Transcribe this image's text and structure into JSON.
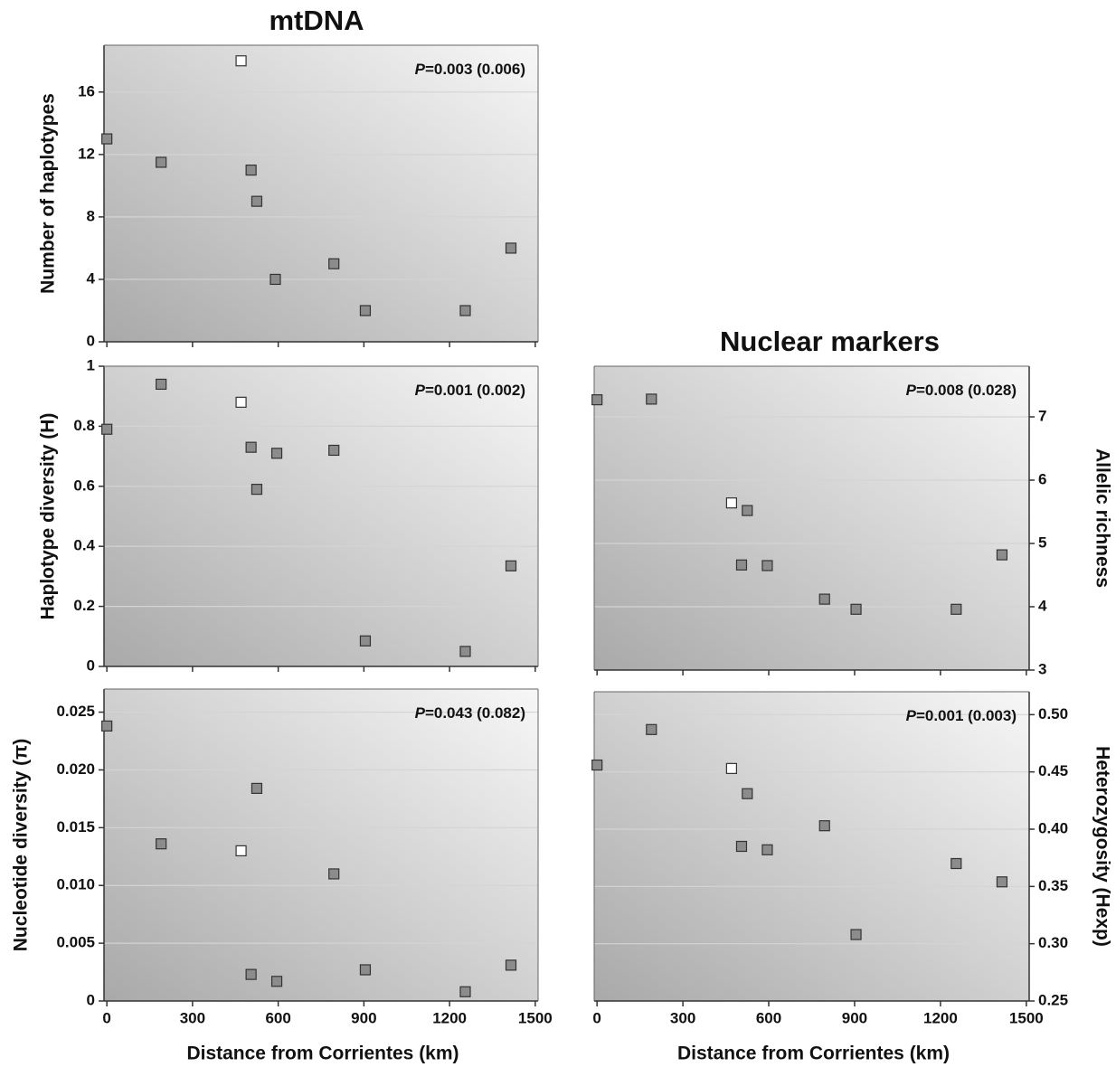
{
  "chart_data": [
    {
      "type": "scatter",
      "title": "mtDNA",
      "ylabel": "Number of haplotypes",
      "annotation": "P=0.003 (0.006)",
      "xlim": [
        -10,
        1510
      ],
      "ylim": [
        0,
        19
      ],
      "yticks": [
        0,
        4,
        8,
        12,
        16
      ],
      "yaxis": "left",
      "grid": true,
      "series": [
        {
          "color": "#8c8c8c",
          "x": [
            0,
            190,
            505,
            525,
            590,
            795,
            905,
            1255,
            1415
          ],
          "values": [
            13,
            11.5,
            11,
            9,
            4,
            5,
            2,
            2,
            6
          ]
        },
        {
          "color": "#ffffff",
          "x": [
            470
          ],
          "values": [
            18
          ]
        }
      ]
    },
    {
      "type": "scatter",
      "ylabel": "Haplotype diversity (H)",
      "annotation": "P=0.001 (0.002)",
      "xlim": [
        -10,
        1510
      ],
      "ylim": [
        0,
        1
      ],
      "yticks": [
        0,
        0.2,
        0.4,
        0.6,
        0.8,
        1
      ],
      "yaxis": "left",
      "grid": true,
      "series": [
        {
          "color": "#8c8c8c",
          "x": [
            0,
            190,
            505,
            525,
            595,
            795,
            905,
            1255,
            1415
          ],
          "values": [
            0.79,
            0.94,
            0.73,
            0.59,
            0.71,
            0.72,
            0.085,
            0.05,
            0.335
          ]
        },
        {
          "color": "#ffffff",
          "x": [
            470
          ],
          "values": [
            0.88
          ]
        }
      ]
    },
    {
      "type": "scatter",
      "ylabel": "Nucleotide diversity (π)",
      "annotation": "P=0.043 (0.082)",
      "xlabel": "Distance from Corrientes (km)",
      "xlim": [
        -10,
        1510
      ],
      "xticks": [
        0,
        300,
        600,
        900,
        1200,
        1500
      ],
      "ylim": [
        0,
        0.027
      ],
      "yticks": [
        0,
        0.005,
        {
          "value": 0.01,
          "label": "0.010"
        },
        0.015,
        {
          "value": 0.02,
          "label": "0.020"
        },
        0.025
      ],
      "yaxis": "left",
      "grid": true,
      "series": [
        {
          "color": "#8c8c8c",
          "x": [
            0,
            190,
            505,
            525,
            595,
            795,
            905,
            1255,
            1415
          ],
          "values": [
            0.0238,
            0.0136,
            0.0023,
            0.0184,
            0.0017,
            0.011,
            0.0027,
            0.0008,
            0.0031
          ]
        },
        {
          "color": "#ffffff",
          "x": [
            470
          ],
          "values": [
            0.013
          ]
        }
      ]
    },
    {
      "type": "scatter",
      "title": "Nuclear markers",
      "ylabel": "Allelic richness",
      "annotation": "P=0.008 (0.028)",
      "xlim": [
        -10,
        1510
      ],
      "ylim": [
        3,
        7.8
      ],
      "yticks": [
        3,
        4,
        5,
        6,
        7
      ],
      "yaxis": "right",
      "grid": true,
      "series": [
        {
          "color": "#8c8c8c",
          "x": [
            0,
            190,
            505,
            525,
            595,
            795,
            905,
            1255,
            1415
          ],
          "values": [
            7.27,
            7.28,
            4.66,
            5.52,
            4.65,
            4.12,
            3.96,
            3.96,
            4.82
          ]
        },
        {
          "color": "#ffffff",
          "x": [
            470
          ],
          "values": [
            5.64
          ]
        }
      ]
    },
    {
      "type": "scatter",
      "ylabel": "Heterozygosity (Hexp)",
      "annotation": "P=0.001 (0.003)",
      "xlabel": "Distance from Corrientes (km)",
      "xlim": [
        -10,
        1510
      ],
      "xticks": [
        0,
        300,
        600,
        900,
        1200,
        1500
      ],
      "ylim": [
        0.25,
        0.52
      ],
      "yticks": [
        0.25,
        {
          "value": 0.3,
          "label": "0.30"
        },
        0.35,
        {
          "value": 0.4,
          "label": "0.40"
        },
        0.45,
        {
          "value": 0.5,
          "label": "0.50"
        }
      ],
      "yaxis": "right",
      "grid": true,
      "series": [
        {
          "color": "#8c8c8c",
          "x": [
            0,
            190,
            505,
            525,
            595,
            795,
            905,
            1255,
            1415
          ],
          "values": [
            0.456,
            0.487,
            0.385,
            0.431,
            0.382,
            0.403,
            0.308,
            0.37,
            0.354
          ]
        },
        {
          "color": "#ffffff",
          "x": [
            470
          ],
          "values": [
            0.453
          ]
        }
      ]
    }
  ]
}
